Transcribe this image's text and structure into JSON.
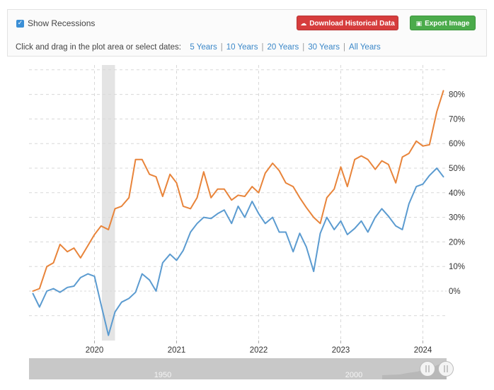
{
  "controls": {
    "show_recessions_label": "Show Recessions",
    "show_recessions_checked": true,
    "download_label": "Download Historical Data",
    "export_label": "Export Image",
    "range_prompt": "Click and drag in the plot area or select dates:",
    "ranges": [
      "5 Years",
      "10 Years",
      "20 Years",
      "30 Years",
      "All Years"
    ]
  },
  "navigator": {
    "labels": [
      "1950",
      "2000"
    ]
  },
  "colors": {
    "orange_series": "#e8843a",
    "blue_series": "#5b9bd0",
    "recession_band": "#e4e4e4",
    "grid": "#d8d8d8",
    "download_button": "#d63d3d",
    "export_button": "#4bab4b",
    "link": "#3a87c8"
  },
  "chart_data": {
    "type": "line",
    "x_axis_ticks": [
      "2020",
      "2021",
      "2022",
      "2023",
      "2024"
    ],
    "y_axis_ticks": [
      "0%",
      "10%",
      "20%",
      "30%",
      "40%",
      "50%",
      "60%",
      "70%",
      "80%"
    ],
    "ylim": [
      -19,
      82
    ],
    "xlim": [
      2019.23,
      2024.27
    ],
    "grid": true,
    "legend": "none",
    "recession": [
      2020.09,
      2020.25
    ],
    "series": [
      {
        "color": "#e8843a",
        "points": [
          [
            2019.25,
            0.0
          ],
          [
            2019.33,
            1.0
          ],
          [
            2019.42,
            10.0
          ],
          [
            2019.5,
            11.5
          ],
          [
            2019.58,
            19.0
          ],
          [
            2019.67,
            16.0
          ],
          [
            2019.75,
            17.5
          ],
          [
            2019.83,
            13.5
          ],
          [
            2019.92,
            18.5
          ],
          [
            2020.0,
            23.0
          ],
          [
            2020.08,
            26.5
          ],
          [
            2020.17,
            25.0
          ],
          [
            2020.25,
            33.5
          ],
          [
            2020.33,
            34.5
          ],
          [
            2020.42,
            38.0
          ],
          [
            2020.5,
            53.5
          ],
          [
            2020.58,
            53.5
          ],
          [
            2020.67,
            47.5
          ],
          [
            2020.75,
            46.5
          ],
          [
            2020.83,
            38.5
          ],
          [
            2020.92,
            47.5
          ],
          [
            2021.0,
            44.0
          ],
          [
            2021.08,
            34.5
          ],
          [
            2021.17,
            33.5
          ],
          [
            2021.25,
            38.0
          ],
          [
            2021.33,
            48.5
          ],
          [
            2021.42,
            38.0
          ],
          [
            2021.5,
            41.5
          ],
          [
            2021.58,
            41.5
          ],
          [
            2021.67,
            37.0
          ],
          [
            2021.75,
            39.0
          ],
          [
            2021.83,
            38.5
          ],
          [
            2021.92,
            42.5
          ],
          [
            2022.0,
            40.0
          ],
          [
            2022.08,
            48.0
          ],
          [
            2022.17,
            52.0
          ],
          [
            2022.25,
            49.0
          ],
          [
            2022.33,
            44.0
          ],
          [
            2022.42,
            42.5
          ],
          [
            2022.5,
            38.0
          ],
          [
            2022.58,
            34.0
          ],
          [
            2022.67,
            30.0
          ],
          [
            2022.75,
            27.5
          ],
          [
            2022.83,
            38.0
          ],
          [
            2022.92,
            41.5
          ],
          [
            2023.0,
            50.5
          ],
          [
            2023.08,
            42.5
          ],
          [
            2023.17,
            53.5
          ],
          [
            2023.25,
            55.0
          ],
          [
            2023.33,
            53.5
          ],
          [
            2023.42,
            49.5
          ],
          [
            2023.5,
            53.0
          ],
          [
            2023.58,
            51.5
          ],
          [
            2023.67,
            44.0
          ],
          [
            2023.75,
            54.5
          ],
          [
            2023.83,
            56.0
          ],
          [
            2023.92,
            61.0
          ],
          [
            2024.0,
            59.0
          ],
          [
            2024.08,
            59.5
          ],
          [
            2024.17,
            73.0
          ],
          [
            2024.25,
            81.5
          ]
        ]
      },
      {
        "color": "#5b9bd0",
        "points": [
          [
            2019.25,
            -1.0
          ],
          [
            2019.33,
            -6.5
          ],
          [
            2019.42,
            0.0
          ],
          [
            2019.5,
            1.0
          ],
          [
            2019.58,
            -0.5
          ],
          [
            2019.67,
            1.5
          ],
          [
            2019.75,
            2.0
          ],
          [
            2019.83,
            5.5
          ],
          [
            2019.92,
            7.0
          ],
          [
            2020.0,
            6.0
          ],
          [
            2020.08,
            -5.5
          ],
          [
            2020.17,
            -18.0
          ],
          [
            2020.25,
            -8.5
          ],
          [
            2020.33,
            -4.5
          ],
          [
            2020.42,
            -3.0
          ],
          [
            2020.5,
            -0.5
          ],
          [
            2020.58,
            7.0
          ],
          [
            2020.67,
            4.5
          ],
          [
            2020.75,
            0.0
          ],
          [
            2020.83,
            11.5
          ],
          [
            2020.92,
            15.0
          ],
          [
            2021.0,
            12.5
          ],
          [
            2021.08,
            16.5
          ],
          [
            2021.17,
            24.0
          ],
          [
            2021.25,
            27.5
          ],
          [
            2021.33,
            30.0
          ],
          [
            2021.42,
            29.5
          ],
          [
            2021.5,
            31.5
          ],
          [
            2021.58,
            33.0
          ],
          [
            2021.67,
            27.5
          ],
          [
            2021.75,
            34.5
          ],
          [
            2021.83,
            30.0
          ],
          [
            2021.92,
            36.5
          ],
          [
            2022.0,
            31.5
          ],
          [
            2022.08,
            27.5
          ],
          [
            2022.17,
            30.0
          ],
          [
            2022.25,
            24.0
          ],
          [
            2022.33,
            24.0
          ],
          [
            2022.42,
            16.0
          ],
          [
            2022.5,
            23.5
          ],
          [
            2022.58,
            18.0
          ],
          [
            2022.67,
            8.0
          ],
          [
            2022.75,
            23.5
          ],
          [
            2022.83,
            30.0
          ],
          [
            2022.92,
            25.0
          ],
          [
            2023.0,
            28.5
          ],
          [
            2023.08,
            23.0
          ],
          [
            2023.17,
            25.5
          ],
          [
            2023.25,
            28.5
          ],
          [
            2023.33,
            24.0
          ],
          [
            2023.42,
            30.0
          ],
          [
            2023.5,
            33.5
          ],
          [
            2023.58,
            30.5
          ],
          [
            2023.67,
            26.5
          ],
          [
            2023.75,
            25.0
          ],
          [
            2023.83,
            35.5
          ],
          [
            2023.92,
            42.5
          ],
          [
            2024.0,
            43.5
          ],
          [
            2024.08,
            47.0
          ],
          [
            2024.17,
            50.0
          ],
          [
            2024.25,
            46.5
          ]
        ]
      }
    ]
  }
}
